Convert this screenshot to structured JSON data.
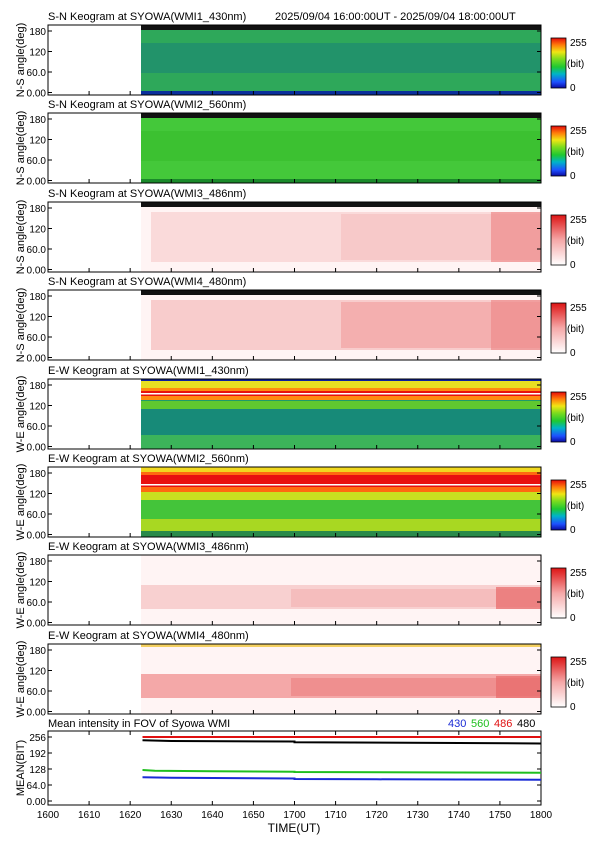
{
  "header": {
    "date_range": "2025/09/04 16:00:00UT - 2025/09/04 18:00:00UT"
  },
  "keograms": [
    {
      "title": "S-N Keogram at SYOWA(WMI1_430nm)",
      "ylabel": "N-S angle(deg)",
      "yticks": [
        "180",
        "120",
        "60.0",
        "0.00"
      ],
      "colormap": "rainbow"
    },
    {
      "title": "S-N Keogram at SYOWA(WMI2_560nm)",
      "ylabel": "N-S angle(deg)",
      "yticks": [
        "180",
        "120",
        "60.0",
        "0.00"
      ],
      "colormap": "rainbow"
    },
    {
      "title": "S-N Keogram at SYOWA(WMI3_486nm)",
      "ylabel": "N-S angle(deg)",
      "yticks": [
        "180",
        "120",
        "60.0",
        "0.00"
      ],
      "colormap": "white-red"
    },
    {
      "title": "S-N Keogram at SYOWA(WMI4_480nm)",
      "ylabel": "N-S angle(deg)",
      "yticks": [
        "180",
        "120",
        "60.0",
        "0.00"
      ],
      "colormap": "white-red"
    },
    {
      "title": "E-W Keogram at SYOWA(WMI1_430nm)",
      "ylabel": "W-E angle(deg)",
      "yticks": [
        "180",
        "120",
        "60.0",
        "0.00"
      ],
      "colormap": "rainbow"
    },
    {
      "title": "E-W Keogram at SYOWA(WMI2_560nm)",
      "ylabel": "W-E angle(deg)",
      "yticks": [
        "180",
        "120",
        "60.0",
        "0.00"
      ],
      "colormap": "rainbow"
    },
    {
      "title": "E-W Keogram at SYOWA(WMI3_486nm)",
      "ylabel": "W-E angle(deg)",
      "yticks": [
        "180",
        "120",
        "60.0",
        "0.00"
      ],
      "colormap": "white-red"
    },
    {
      "title": "E-W Keogram at SYOWA(WMI4_480nm)",
      "ylabel": "W-E angle(deg)",
      "yticks": [
        "180",
        "120",
        "60.0",
        "0.00"
      ],
      "colormap": "white-red"
    }
  ],
  "colorbar": {
    "max_label": "255",
    "unit_label": "(bit)",
    "min_label": "0"
  },
  "chart_data": {
    "type": "line",
    "title": "Mean intensity in FOV of Syowa WMI",
    "ylabel": "MEAN(BIT)",
    "xlabel": "TIME(UT)",
    "xlim": [
      1600,
      1800
    ],
    "ylim": [
      0,
      256
    ],
    "x_ticks": [
      "1600",
      "1610",
      "1620",
      "1630",
      "1640",
      "1650",
      "1700",
      "1710",
      "1720",
      "1730",
      "1740",
      "1750",
      "1800"
    ],
    "y_ticks": [
      "256",
      "192",
      "128",
      "64.0",
      "0.00"
    ],
    "legend": [
      {
        "label": "430",
        "color": "#1a2bd6"
      },
      {
        "label": "560",
        "color": "#1fbf1f"
      },
      {
        "label": "486",
        "color": "#e01010"
      },
      {
        "label": "480",
        "color": "#000000"
      }
    ],
    "series": [
      {
        "name": "486",
        "color": "#e01010",
        "x": [
          1623,
          1660,
          1700,
          1740,
          1800
        ],
        "values": [
          256,
          256,
          256,
          256,
          256
        ]
      },
      {
        "name": "480",
        "color": "#000000",
        "x": [
          1623,
          1630,
          1660,
          1700,
          1740,
          1800
        ],
        "values": [
          243,
          240,
          238,
          235,
          232,
          230
        ]
      },
      {
        "name": "560",
        "color": "#1fbf1f",
        "x": [
          1623,
          1626,
          1640,
          1660,
          1700,
          1740,
          1800
        ],
        "values": [
          124,
          121,
          119,
          117,
          116,
          114,
          113
        ]
      },
      {
        "name": "430",
        "color": "#1a2bd6",
        "x": [
          1623,
          1630,
          1660,
          1700,
          1720,
          1740,
          1800
        ],
        "values": [
          95,
          93,
          90,
          88,
          87,
          86,
          85
        ]
      }
    ]
  }
}
